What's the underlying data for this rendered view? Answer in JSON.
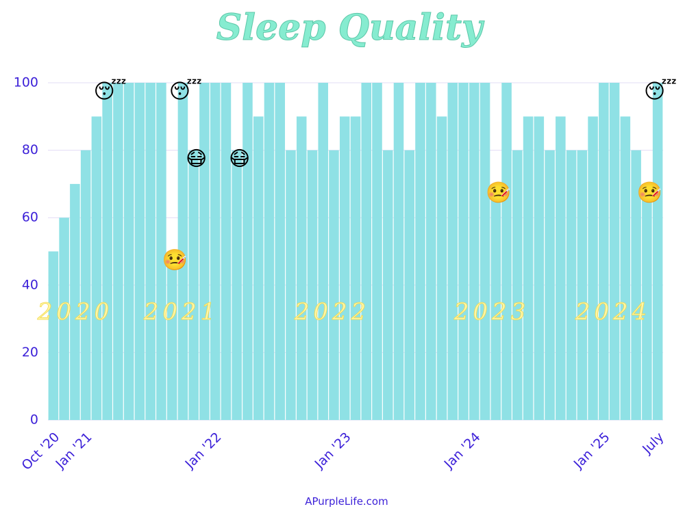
{
  "chart_data": {
    "type": "bar",
    "title": "Sleep Quality",
    "source": "APurpleLife.com",
    "categories": [
      "Oct '20",
      null,
      null,
      "Jan '21",
      null,
      null,
      null,
      null,
      null,
      null,
      null,
      null,
      null,
      null,
      null,
      "Jan '22",
      null,
      null,
      null,
      null,
      null,
      null,
      null,
      null,
      null,
      null,
      null,
      "Jan '23",
      null,
      null,
      null,
      null,
      null,
      null,
      null,
      null,
      null,
      null,
      null,
      "Jan '24",
      null,
      null,
      null,
      null,
      null,
      null,
      null,
      null,
      null,
      null,
      null,
      "Jan '25",
      null,
      null,
      null,
      null,
      "July"
    ],
    "values": [
      50,
      60,
      70,
      80,
      90,
      100,
      100,
      100,
      100,
      100,
      100,
      50,
      100,
      80,
      100,
      100,
      100,
      80,
      100,
      90,
      100,
      100,
      80,
      90,
      80,
      100,
      80,
      90,
      90,
      100,
      100,
      80,
      100,
      80,
      100,
      100,
      90,
      100,
      100,
      100,
      100,
      70,
      100,
      80,
      90,
      90,
      80,
      90,
      80,
      80,
      90,
      100,
      100,
      90,
      80,
      70,
      100
    ],
    "emojis": [
      null,
      null,
      null,
      null,
      null,
      "😴",
      null,
      null,
      null,
      null,
      null,
      "🤒",
      "😴",
      "😷",
      null,
      null,
      null,
      "😷",
      null,
      null,
      null,
      null,
      null,
      null,
      null,
      null,
      null,
      null,
      null,
      null,
      null,
      null,
      null,
      null,
      null,
      null,
      null,
      null,
      null,
      null,
      null,
      "🤒",
      null,
      null,
      null,
      null,
      null,
      null,
      null,
      null,
      null,
      null,
      null,
      null,
      null,
      "🤒",
      "😴"
    ],
    "year_labels": [
      "2020",
      "2021",
      "2022",
      "2023",
      "2024"
    ],
    "color": "#8fe1e5",
    "ylim": [
      0,
      100
    ],
    "yticks": [
      0,
      20,
      40,
      60,
      80,
      100
    ],
    "grid": true
  }
}
